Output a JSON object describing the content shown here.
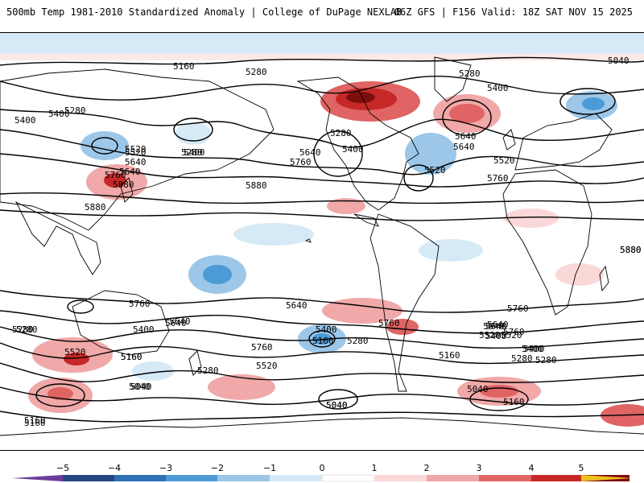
{
  "header": {
    "left": "500mb Temp 1981-2010 Standardized Anomaly | College of DuPage NEXLAB",
    "right": "06Z GFS | F156 Valid: 18Z SAT NOV 15 2025"
  },
  "map": {
    "variable": "500mb Temp standardized anomaly",
    "contour_field": "500mb height (dam)",
    "contour_labels": [
      "5160",
      "5280",
      "5400",
      "5040",
      "5280",
      "5400",
      "5280",
      "5520",
      "5640",
      "5280",
      "5400",
      "5640",
      "5760",
      "5280",
      "5400",
      "5520",
      "5640",
      "5760",
      "5640",
      "5520",
      "5640",
      "5760",
      "5880",
      "5880",
      "5760",
      "5880",
      "5880",
      "5280",
      "5160",
      "5400",
      "5520",
      "5640",
      "5760",
      "5640",
      "5280",
      "5160",
      "5040",
      "5520",
      "5400",
      "5280",
      "5160",
      "5040",
      "5760",
      "5640",
      "5400",
      "5520",
      "5640",
      "5280",
      "5400",
      "5760",
      "5160",
      "5040",
      "5040",
      "5160",
      "5280",
      "5400",
      "5520",
      "5640",
      "5760",
      "5400",
      "5520",
      "5640",
      "5280",
      "5160",
      "5040",
      "5160",
      "5880"
    ]
  },
  "colorbar": {
    "ticks": [
      "−5",
      "−4",
      "−3",
      "−2",
      "−1",
      "0",
      "1",
      "2",
      "3",
      "4",
      "5"
    ],
    "colors": [
      "#6a3d9a",
      "#24457e",
      "#2f6fb5",
      "#4c9ad6",
      "#9cc7e8",
      "#d6e9f6",
      "#ffffff",
      "#fbd8d8",
      "#f0a8a8",
      "#e06464",
      "#c62828",
      "#7e0e0e",
      "#f0c020"
    ]
  }
}
